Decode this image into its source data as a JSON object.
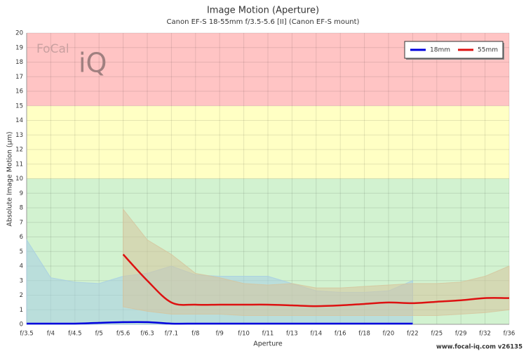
{
  "chart_data": {
    "type": "line",
    "title": "Image Motion (Aperture)",
    "subtitle": "Canon EF-S 18-55mm f/3.5-5.6 [II] (Canon EF-S mount)",
    "x_label": "Aperture",
    "y_label": "Absolute Image Motion (µm)",
    "logo": [
      "FoCal",
      "iQ"
    ],
    "footer": "www.focal-iq.com  v26135",
    "categories": [
      "f/3.5",
      "f/4",
      "f/4.5",
      "f/5",
      "f/5.6",
      "f/6.3",
      "f/7.1",
      "f/8",
      "f/9",
      "f/10",
      "f/11",
      "f/13",
      "f/14",
      "f/16",
      "f/18",
      "f/20",
      "f/22",
      "f/25",
      "f/29",
      "f/32",
      "f/36"
    ],
    "ylim": [
      0,
      20
    ],
    "yticks": [
      0,
      1,
      2,
      3,
      4,
      5,
      6,
      7,
      8,
      9,
      10,
      11,
      12,
      13,
      14,
      15,
      16,
      17,
      18,
      19,
      20
    ],
    "grid": true,
    "legend": "top-right",
    "bands": [
      {
        "from": 0,
        "to": 10,
        "color": "#d2f2d0"
      },
      {
        "from": 10,
        "to": 15,
        "color": "#ffffc4"
      },
      {
        "from": 15,
        "to": 20,
        "color": "#ffc4c4"
      }
    ],
    "series": [
      {
        "name": "18mm",
        "color": "#0000dd",
        "range_color": "#a6cde3",
        "values": [
          0.05,
          0.05,
          0.05,
          0.1,
          0.15,
          0.15,
          0.05,
          0.05,
          0.05,
          0.05,
          0.05,
          0.05,
          0.05,
          0.05,
          0.05,
          0.05,
          0.05,
          null,
          null,
          null,
          null
        ],
        "range_high": [
          5.8,
          3.2,
          2.9,
          2.8,
          3.3,
          3.5,
          4.0,
          3.4,
          3.3,
          3.3,
          3.3,
          2.8,
          2.3,
          2.2,
          2.2,
          2.3,
          3.0,
          null,
          null,
          null,
          null
        ],
        "range_low": [
          0,
          0,
          0,
          0,
          0,
          0,
          0,
          0,
          0,
          0,
          0,
          0,
          0,
          0,
          0,
          0,
          0,
          null,
          null,
          null,
          null
        ]
      },
      {
        "name": "55mm",
        "color": "#dd1111",
        "range_color": "#d6c49c",
        "values": [
          null,
          null,
          null,
          null,
          4.8,
          3.0,
          1.5,
          1.35,
          1.35,
          1.35,
          1.35,
          1.3,
          1.25,
          1.3,
          1.4,
          1.5,
          1.45,
          1.55,
          1.65,
          1.8,
          1.8
        ],
        "range_high": [
          null,
          null,
          null,
          null,
          7.9,
          5.8,
          4.8,
          3.5,
          3.2,
          2.8,
          2.7,
          2.8,
          2.5,
          2.5,
          2.6,
          2.7,
          2.8,
          2.8,
          2.9,
          3.3,
          4.0
        ],
        "range_low": [
          null,
          null,
          null,
          null,
          1.2,
          0.9,
          0.7,
          0.7,
          0.7,
          0.6,
          0.6,
          0.6,
          0.6,
          0.6,
          0.6,
          0.6,
          0.6,
          0.6,
          0.7,
          0.8,
          1.0
        ]
      }
    ]
  }
}
